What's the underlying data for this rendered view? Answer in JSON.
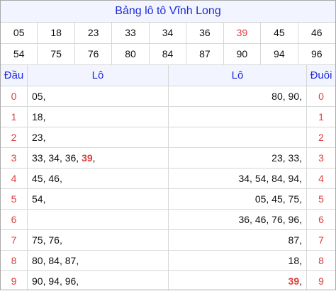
{
  "title": "Bảng lô tô Vĩnh Long",
  "numbers_row1": [
    "05",
    "18",
    "23",
    "33",
    "34",
    "36",
    "39",
    "45",
    "46"
  ],
  "numbers_row2": [
    "54",
    "75",
    "76",
    "80",
    "84",
    "87",
    "90",
    "94",
    "96"
  ],
  "highlight_number": "39",
  "header": {
    "dau": "Đầu",
    "lo_left": "Lô",
    "lo_right": "Lô",
    "duoi": "Đuôi"
  },
  "rows": [
    {
      "idx": "0",
      "left": [
        "05"
      ],
      "right": [
        "80",
        "90"
      ]
    },
    {
      "idx": "1",
      "left": [
        "18"
      ],
      "right": []
    },
    {
      "idx": "2",
      "left": [
        "23"
      ],
      "right": []
    },
    {
      "idx": "3",
      "left": [
        "33",
        "34",
        "36",
        "39"
      ],
      "right": [
        "23",
        "33"
      ]
    },
    {
      "idx": "4",
      "left": [
        "45",
        "46"
      ],
      "right": [
        "34",
        "54",
        "84",
        "94"
      ]
    },
    {
      "idx": "5",
      "left": [
        "54"
      ],
      "right": [
        "05",
        "45",
        "75"
      ]
    },
    {
      "idx": "6",
      "left": [],
      "right": [
        "36",
        "46",
        "76",
        "96"
      ]
    },
    {
      "idx": "7",
      "left": [
        "75",
        "76"
      ],
      "right": [
        "87"
      ]
    },
    {
      "idx": "8",
      "left": [
        "80",
        "84",
        "87"
      ],
      "right": [
        "18"
      ]
    },
    {
      "idx": "9",
      "left": [
        "90",
        "94",
        "96"
      ],
      "right": [
        "39"
      ]
    }
  ],
  "colors": {
    "title_blue": "#1f2ad8",
    "index_red": "#e03c3c",
    "highlight_red": "#e03c3c"
  }
}
